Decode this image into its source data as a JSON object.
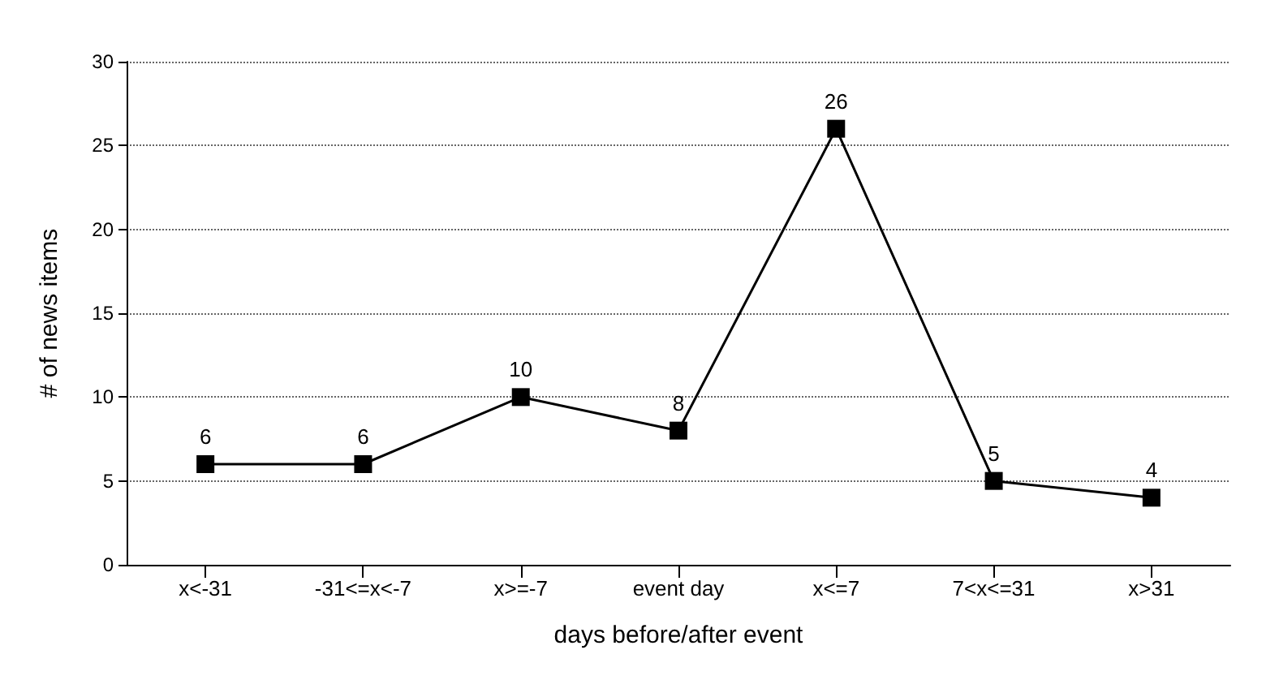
{
  "chart_data": {
    "type": "line",
    "xlabel": "days before/after event",
    "ylabel": "# of news items",
    "categories": [
      "x<-31",
      "-31<=x<-7",
      "x>=-7",
      "event day",
      "x<=7",
      "7<x<=31",
      "x>31"
    ],
    "series": [
      {
        "color": "#000000",
        "values": [
          6,
          6,
          10,
          8,
          26,
          5,
          4
        ]
      }
    ],
    "ylim": [
      0,
      30
    ],
    "yticks": [
      0,
      5,
      10,
      15,
      20,
      25,
      30
    ],
    "grid": "y",
    "marker": "square",
    "line_style": "solid",
    "data_labels": true
  }
}
